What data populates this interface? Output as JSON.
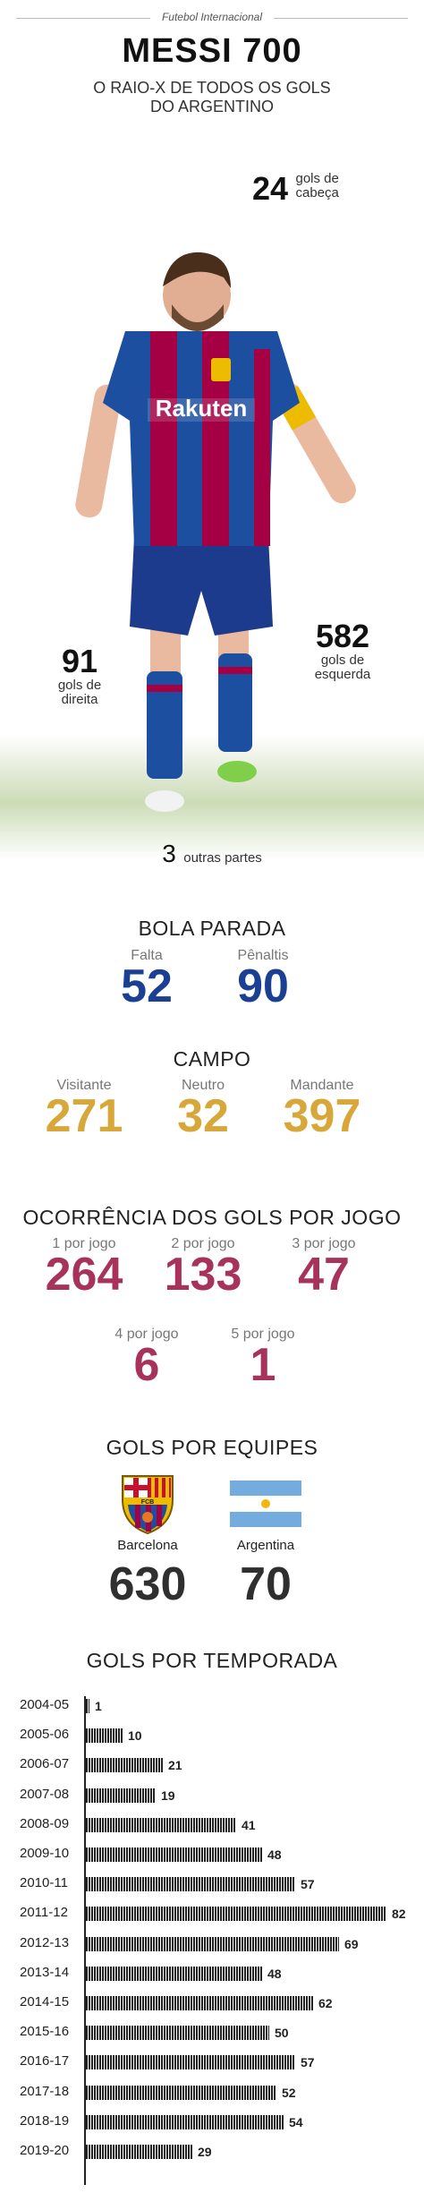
{
  "header": {
    "tagline": "Futebol Internacional",
    "title": "MESSI 700",
    "subtitle_line1": "O RAIO-X DE TODOS OS GOLS",
    "subtitle_line2": "DO ARGENTINO"
  },
  "body_parts": {
    "head_value": "24",
    "head_label_1": "gols de",
    "head_label_2": "cabeça",
    "right_value": "91",
    "right_label_1": "gols de",
    "right_label_2": "direita",
    "left_value": "582",
    "left_label_1": "gols de",
    "left_label_2": "esquerda",
    "other_value": "3",
    "other_label": "outras partes",
    "jersey_sponsor": "Rakuten"
  },
  "bola_parada": {
    "title": "BOLA PARADA",
    "falta_label": "Falta",
    "falta_value": "52",
    "penaltis_label": "Pênaltis",
    "penaltis_value": "90"
  },
  "campo": {
    "title": "CAMPO",
    "visitante_label": "Visitante",
    "visitante_value": "271",
    "neutro_label": "Neutro",
    "neutro_value": "32",
    "mandante_label": "Mandante",
    "mandante_value": "397"
  },
  "ocorrencia": {
    "title": "OCORRÊNCIA DOS GOLS POR JOGO",
    "items": [
      {
        "label": "1 por jogo",
        "value": "264"
      },
      {
        "label": "2 por jogo",
        "value": "133"
      },
      {
        "label": "3 por jogo",
        "value": "47"
      },
      {
        "label": "4 por jogo",
        "value": "6"
      },
      {
        "label": "5 por jogo",
        "value": "1"
      }
    ]
  },
  "equipes": {
    "title": "GOLS POR EQUIPES",
    "barcelona_label": "Barcelona",
    "barcelona_value": "630",
    "barcelona_crest_text": "FCB",
    "argentina_label": "Argentina",
    "argentina_value": "70"
  },
  "colors": {
    "blue": "#1b3f93",
    "gold": "#d7a73a",
    "red": "#a8335a",
    "barca_blue": "#1d4fa0",
    "barca_red": "#a50044",
    "barca_gold": "#edbb00",
    "argentina_sky": "#74acdf"
  },
  "chart_data": {
    "type": "bar",
    "orientation": "horizontal",
    "title": "GOLS POR TEMPORADA",
    "categories": [
      "2004-05",
      "2005-06",
      "2006-07",
      "2007-08",
      "2008-09",
      "2009-10",
      "2010-11",
      "2011-12",
      "2012-13",
      "2013-14",
      "2014-15",
      "2015-16",
      "2016-17",
      "2017-18",
      "2018-19",
      "2019-20"
    ],
    "values": [
      1,
      10,
      21,
      19,
      41,
      48,
      57,
      82,
      69,
      48,
      62,
      50,
      57,
      52,
      54,
      29
    ],
    "xlabel": "",
    "ylabel": "",
    "xlim": [
      0,
      82
    ],
    "grid": false
  }
}
